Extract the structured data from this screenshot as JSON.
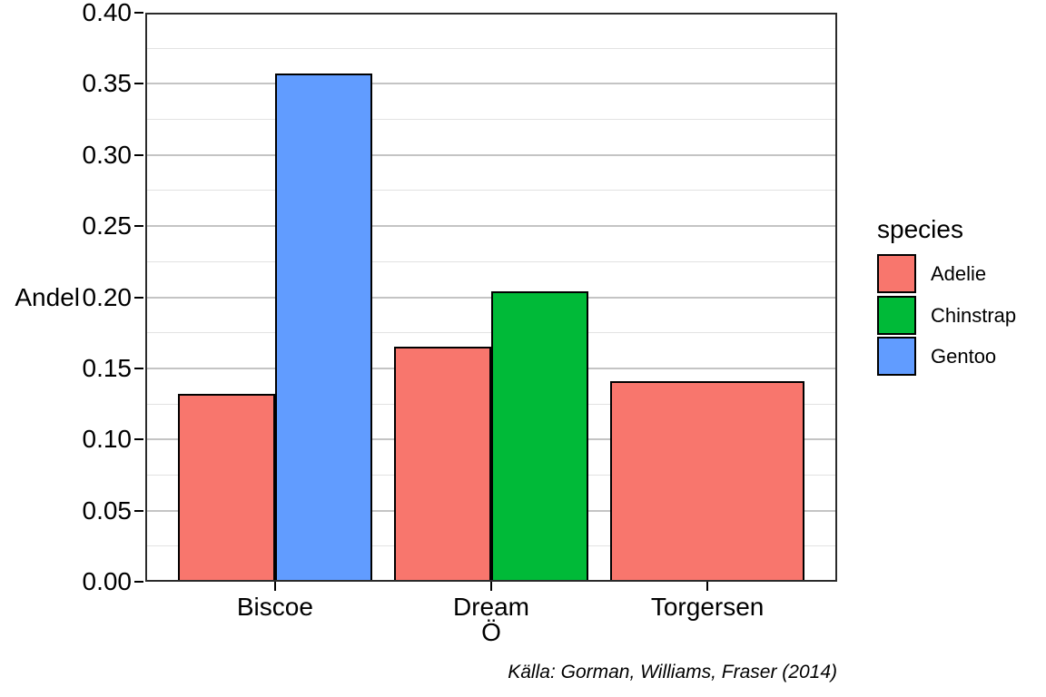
{
  "chart_data": {
    "type": "bar",
    "title": "",
    "xlabel": "Ö",
    "ylabel": "Andel",
    "caption": "Källa: Gorman, Williams, Fraser (2014)",
    "legend_title": "species",
    "legend_position": "right",
    "grid": "on",
    "categories": [
      "Biscoe",
      "Dream",
      "Torgersen"
    ],
    "series": [
      {
        "name": "Adelie",
        "color": "#F8766D",
        "values": [
          0.132,
          0.165,
          0.141
        ]
      },
      {
        "name": "Chinstrap",
        "color": "#00BA38",
        "values": [
          null,
          0.204,
          null
        ]
      },
      {
        "name": "Gentoo",
        "color": "#619CFF",
        "values": [
          0.357,
          null,
          null
        ]
      }
    ],
    "ylim": [
      0,
      0.4
    ],
    "yticks": [
      0.0,
      0.05,
      0.1,
      0.15,
      0.2,
      0.25,
      0.3,
      0.35,
      0.4
    ],
    "ytick_step": 0.05,
    "minor_step": 0.025,
    "bar_layout": "dodge"
  }
}
